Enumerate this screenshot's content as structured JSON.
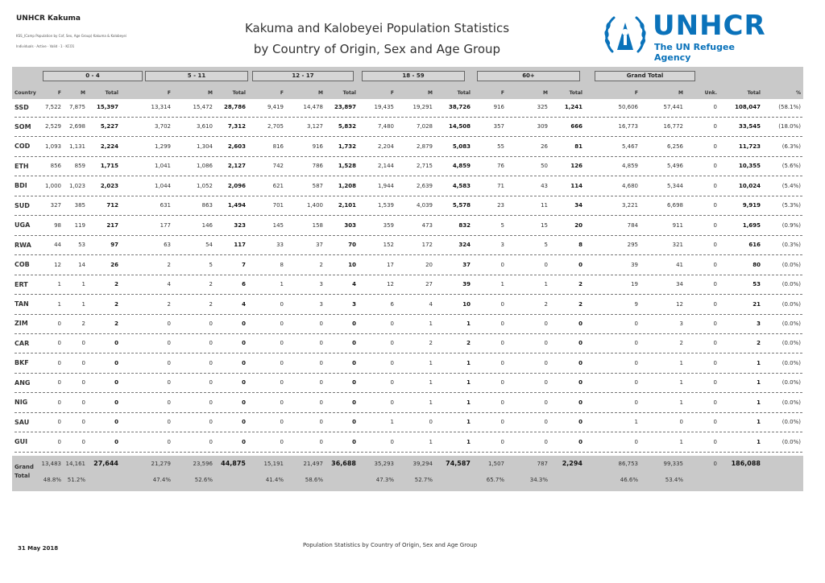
{
  "header": {
    "org": "UNHCR Kakuma",
    "sub1": "KSS_(Camp Population by Cof, Sex, Age Group) Kakuma & Kalobeyei",
    "sub2": "Individuals · Active · Valid · 1 · KCO1",
    "title_line1": "Kakuma and Kalobeyei Population Statistics",
    "title_line2": "by Country of Origin, Sex and Age Group"
  },
  "logo": {
    "name": "UNHCR",
    "tagline": "The UN Refugee Agency"
  },
  "age_groups": [
    "0 - 4",
    "5 - 11",
    "12 - 17",
    "18 - 59",
    "60+",
    "Grand Total"
  ],
  "col_labels": {
    "country": "Country",
    "f": "F",
    "m": "M",
    "total": "Total",
    "unk": "Unk.",
    "pct": "%"
  },
  "rows": [
    {
      "country": "SSD",
      "g": [
        [
          "7,522",
          "7,875",
          "15,397"
        ],
        [
          "13,314",
          "15,472",
          "28,786"
        ],
        [
          "9,419",
          "14,478",
          "23,897"
        ],
        [
          "19,435",
          "19,291",
          "38,726"
        ],
        [
          "916",
          "325",
          "1,241"
        ]
      ],
      "gt": [
        "50,606",
        "57,441",
        "0",
        "108,047",
        "(58.1%)"
      ]
    },
    {
      "country": "SOM",
      "g": [
        [
          "2,529",
          "2,698",
          "5,227"
        ],
        [
          "3,702",
          "3,610",
          "7,312"
        ],
        [
          "2,705",
          "3,127",
          "5,832"
        ],
        [
          "7,480",
          "7,028",
          "14,508"
        ],
        [
          "357",
          "309",
          "666"
        ]
      ],
      "gt": [
        "16,773",
        "16,772",
        "0",
        "33,545",
        "(18.0%)"
      ]
    },
    {
      "country": "COD",
      "g": [
        [
          "1,093",
          "1,131",
          "2,224"
        ],
        [
          "1,299",
          "1,304",
          "2,603"
        ],
        [
          "816",
          "916",
          "1,732"
        ],
        [
          "2,204",
          "2,879",
          "5,083"
        ],
        [
          "55",
          "26",
          "81"
        ]
      ],
      "gt": [
        "5,467",
        "6,256",
        "0",
        "11,723",
        "(6.3%)"
      ]
    },
    {
      "country": "ETH",
      "g": [
        [
          "856",
          "859",
          "1,715"
        ],
        [
          "1,041",
          "1,086",
          "2,127"
        ],
        [
          "742",
          "786",
          "1,528"
        ],
        [
          "2,144",
          "2,715",
          "4,859"
        ],
        [
          "76",
          "50",
          "126"
        ]
      ],
      "gt": [
        "4,859",
        "5,496",
        "0",
        "10,355",
        "(5.6%)"
      ]
    },
    {
      "country": "BDI",
      "g": [
        [
          "1,000",
          "1,023",
          "2,023"
        ],
        [
          "1,044",
          "1,052",
          "2,096"
        ],
        [
          "621",
          "587",
          "1,208"
        ],
        [
          "1,944",
          "2,639",
          "4,583"
        ],
        [
          "71",
          "43",
          "114"
        ]
      ],
      "gt": [
        "4,680",
        "5,344",
        "0",
        "10,024",
        "(5.4%)"
      ]
    },
    {
      "country": "SUD",
      "g": [
        [
          "327",
          "385",
          "712"
        ],
        [
          "631",
          "863",
          "1,494"
        ],
        [
          "701",
          "1,400",
          "2,101"
        ],
        [
          "1,539",
          "4,039",
          "5,578"
        ],
        [
          "23",
          "11",
          "34"
        ]
      ],
      "gt": [
        "3,221",
        "6,698",
        "0",
        "9,919",
        "(5.3%)"
      ]
    },
    {
      "country": "UGA",
      "g": [
        [
          "98",
          "119",
          "217"
        ],
        [
          "177",
          "146",
          "323"
        ],
        [
          "145",
          "158",
          "303"
        ],
        [
          "359",
          "473",
          "832"
        ],
        [
          "5",
          "15",
          "20"
        ]
      ],
      "gt": [
        "784",
        "911",
        "0",
        "1,695",
        "(0.9%)"
      ]
    },
    {
      "country": "RWA",
      "g": [
        [
          "44",
          "53",
          "97"
        ],
        [
          "63",
          "54",
          "117"
        ],
        [
          "33",
          "37",
          "70"
        ],
        [
          "152",
          "172",
          "324"
        ],
        [
          "3",
          "5",
          "8"
        ]
      ],
      "gt": [
        "295",
        "321",
        "0",
        "616",
        "(0.3%)"
      ]
    },
    {
      "country": "COB",
      "g": [
        [
          "12",
          "14",
          "26"
        ],
        [
          "2",
          "5",
          "7"
        ],
        [
          "8",
          "2",
          "10"
        ],
        [
          "17",
          "20",
          "37"
        ],
        [
          "0",
          "0",
          "0"
        ]
      ],
      "gt": [
        "39",
        "41",
        "0",
        "80",
        "(0.0%)"
      ]
    },
    {
      "country": "ERT",
      "g": [
        [
          "1",
          "1",
          "2"
        ],
        [
          "4",
          "2",
          "6"
        ],
        [
          "1",
          "3",
          "4"
        ],
        [
          "12",
          "27",
          "39"
        ],
        [
          "1",
          "1",
          "2"
        ]
      ],
      "gt": [
        "19",
        "34",
        "0",
        "53",
        "(0.0%)"
      ]
    },
    {
      "country": "TAN",
      "g": [
        [
          "1",
          "1",
          "2"
        ],
        [
          "2",
          "2",
          "4"
        ],
        [
          "0",
          "3",
          "3"
        ],
        [
          "6",
          "4",
          "10"
        ],
        [
          "0",
          "2",
          "2"
        ]
      ],
      "gt": [
        "9",
        "12",
        "0",
        "21",
        "(0.0%)"
      ]
    },
    {
      "country": "ZIM",
      "g": [
        [
          "0",
          "2",
          "2"
        ],
        [
          "0",
          "0",
          "0"
        ],
        [
          "0",
          "0",
          "0"
        ],
        [
          "0",
          "1",
          "1"
        ],
        [
          "0",
          "0",
          "0"
        ]
      ],
      "gt": [
        "0",
        "3",
        "0",
        "3",
        "(0.0%)"
      ]
    },
    {
      "country": "CAR",
      "g": [
        [
          "0",
          "0",
          "0"
        ],
        [
          "0",
          "0",
          "0"
        ],
        [
          "0",
          "0",
          "0"
        ],
        [
          "0",
          "2",
          "2"
        ],
        [
          "0",
          "0",
          "0"
        ]
      ],
      "gt": [
        "0",
        "2",
        "0",
        "2",
        "(0.0%)"
      ]
    },
    {
      "country": "BKF",
      "g": [
        [
          "0",
          "0",
          "0"
        ],
        [
          "0",
          "0",
          "0"
        ],
        [
          "0",
          "0",
          "0"
        ],
        [
          "0",
          "1",
          "1"
        ],
        [
          "0",
          "0",
          "0"
        ]
      ],
      "gt": [
        "0",
        "1",
        "0",
        "1",
        "(0.0%)"
      ]
    },
    {
      "country": "ANG",
      "g": [
        [
          "0",
          "0",
          "0"
        ],
        [
          "0",
          "0",
          "0"
        ],
        [
          "0",
          "0",
          "0"
        ],
        [
          "0",
          "1",
          "1"
        ],
        [
          "0",
          "0",
          "0"
        ]
      ],
      "gt": [
        "0",
        "1",
        "0",
        "1",
        "(0.0%)"
      ]
    },
    {
      "country": "NIG",
      "g": [
        [
          "0",
          "0",
          "0"
        ],
        [
          "0",
          "0",
          "0"
        ],
        [
          "0",
          "0",
          "0"
        ],
        [
          "0",
          "1",
          "1"
        ],
        [
          "0",
          "0",
          "0"
        ]
      ],
      "gt": [
        "0",
        "1",
        "0",
        "1",
        "(0.0%)"
      ]
    },
    {
      "country": "SAU",
      "g": [
        [
          "0",
          "0",
          "0"
        ],
        [
          "0",
          "0",
          "0"
        ],
        [
          "0",
          "0",
          "0"
        ],
        [
          "1",
          "0",
          "1"
        ],
        [
          "0",
          "0",
          "0"
        ]
      ],
      "gt": [
        "1",
        "0",
        "0",
        "1",
        "(0.0%)"
      ]
    },
    {
      "country": "GUI",
      "g": [
        [
          "0",
          "0",
          "0"
        ],
        [
          "0",
          "0",
          "0"
        ],
        [
          "0",
          "0",
          "0"
        ],
        [
          "0",
          "1",
          "1"
        ],
        [
          "0",
          "0",
          "0"
        ]
      ],
      "gt": [
        "0",
        "1",
        "0",
        "1",
        "(0.0%)"
      ]
    }
  ],
  "grand_total": {
    "label_line1": "Grand",
    "label_line2": "Total",
    "g": [
      [
        "13,483",
        "14,161",
        "27,644"
      ],
      [
        "21,279",
        "23,596",
        "44,875"
      ],
      [
        "15,191",
        "21,497",
        "36,688"
      ],
      [
        "35,293",
        "39,294",
        "74,587"
      ],
      [
        "1,507",
        "787",
        "2,294"
      ]
    ],
    "gt": [
      "86,753",
      "99,335",
      "0",
      "186,088"
    ],
    "pct": [
      [
        "48.8%",
        "51.2%"
      ],
      [
        "47.4%",
        "52.6%"
      ],
      [
        "41.4%",
        "58.6%"
      ],
      [
        "47.3%",
        "52.7%"
      ],
      [
        "65.7%",
        "34.3%"
      ],
      [
        "46.6%",
        "53.4%"
      ]
    ]
  },
  "footer": {
    "date": "31 May 2018",
    "caption": "Population Statistics by Country of Origin, Sex and Age Group"
  },
  "colors": {
    "brand_blue": "#0a72ba",
    "band_grey": "#c9c9c9"
  }
}
